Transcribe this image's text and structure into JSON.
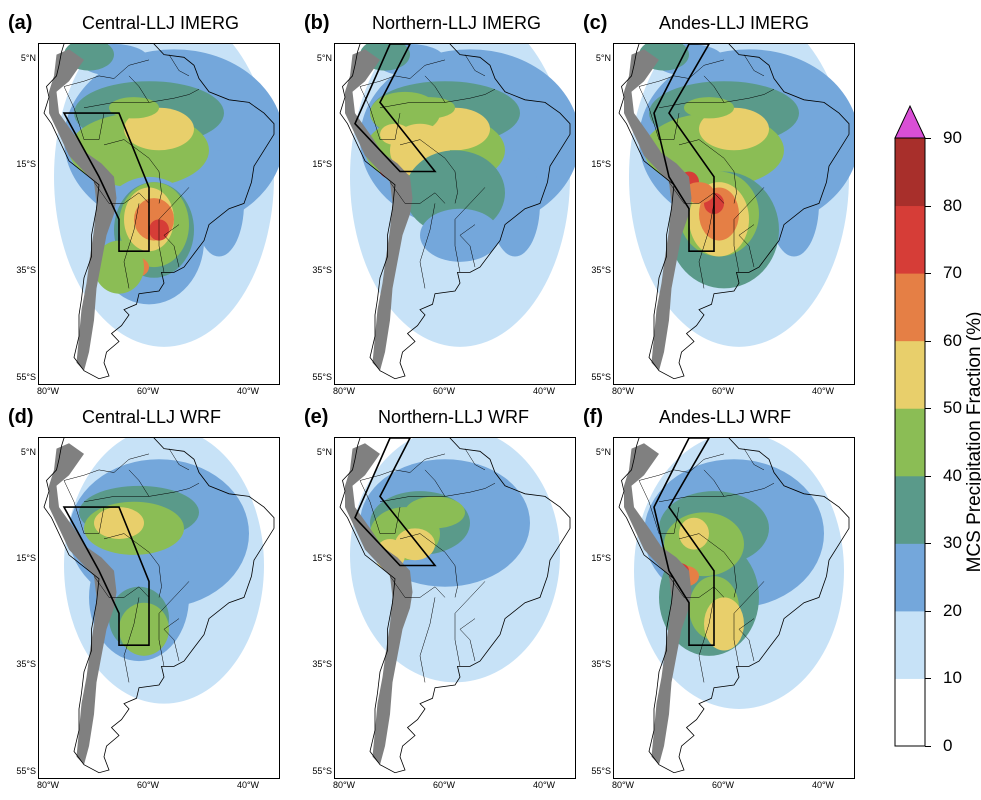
{
  "panels": [
    {
      "letter": "(a)",
      "title": "Central-LLJ IMERG",
      "box": "central",
      "pattern": "imerg_central"
    },
    {
      "letter": "(b)",
      "title": "Northern-LLJ IMERG",
      "box": "northern",
      "pattern": "imerg_northern"
    },
    {
      "letter": "(c)",
      "title": "Andes-LLJ IMERG",
      "box": "andes",
      "pattern": "imerg_andes"
    },
    {
      "letter": "(d)",
      "title": "Central-LLJ WRF",
      "box": "central",
      "pattern": "wrf_central"
    },
    {
      "letter": "(e)",
      "title": "Northern-LLJ WRF",
      "box": "northern",
      "pattern": "wrf_northern"
    },
    {
      "letter": "(f)",
      "title": "Andes-LLJ WRF",
      "box": "andes",
      "pattern": "wrf_andes"
    }
  ],
  "lat_labels": [
    "5°N",
    "15°S",
    "35°S",
    "55°S"
  ],
  "lon_labels": [
    "80°W",
    "60°W",
    "40°W"
  ],
  "colorbar": {
    "label": "MCS Precipitation Fraction (%)",
    "ticks": [
      "0",
      "10",
      "20",
      "30",
      "40",
      "50",
      "60",
      "70",
      "80",
      "90"
    ],
    "extend": "max",
    "colors": [
      "#ffffff",
      "#c7e2f7",
      "#74a7db",
      "#5a9a8a",
      "#8bbd55",
      "#e8cf6b",
      "#e57f45",
      "#d63d37",
      "#a82f2b",
      "#d94fd6"
    ]
  },
  "terrain_color": "#808080",
  "chart_data": {
    "type": "heatmap",
    "variable": "MCS Precipitation Fraction (%)",
    "levels": [
      0,
      10,
      20,
      30,
      40,
      50,
      60,
      70,
      80,
      90
    ],
    "lat_range": [
      5,
      -55
    ],
    "lon_range": [
      -80,
      -35
    ]
  }
}
